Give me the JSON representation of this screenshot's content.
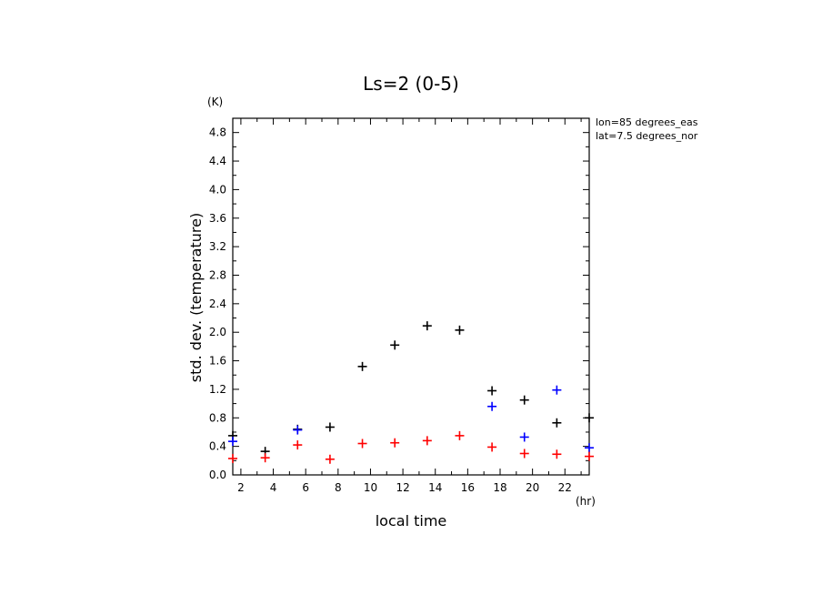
{
  "chart_data": {
    "type": "scatter",
    "title": "Ls=2 (0-5)",
    "xlabel": "local time",
    "ylabel": "std. dev. (temperature)",
    "x_unit": "(hr)",
    "y_unit": "(K)",
    "annotations": [
      "lon=85 degrees_eas",
      "lat=7.5 degrees_nor"
    ],
    "xlim": [
      1.5,
      23.5
    ],
    "ylim": [
      0,
      5.0
    ],
    "x_ticks": [
      2,
      4,
      6,
      8,
      10,
      12,
      14,
      16,
      18,
      20,
      22
    ],
    "y_ticks": [
      0.0,
      0.4,
      0.8,
      1.2,
      1.6,
      2.0,
      2.4,
      2.8,
      3.2,
      3.6,
      4.0,
      4.4,
      4.8
    ],
    "grid": false,
    "series": [
      {
        "color": "#000000",
        "x": [
          1.5,
          3.5,
          5.5,
          7.5,
          9.5,
          11.5,
          13.5,
          15.5,
          17.5,
          19.5,
          21.5,
          23.5
        ],
        "y": [
          0.55,
          0.33,
          0.64,
          0.67,
          1.52,
          1.82,
          2.09,
          2.03,
          1.18,
          1.05,
          0.73,
          0.8
        ]
      },
      {
        "color": "#0000ff",
        "x": [
          1.5,
          5.5,
          17.5,
          19.5,
          21.5,
          23.5
        ],
        "y": [
          0.47,
          0.63,
          0.96,
          0.53,
          1.19,
          0.38
        ]
      },
      {
        "color": "#ff0000",
        "x": [
          1.5,
          3.5,
          5.5,
          7.5,
          9.5,
          11.5,
          13.5,
          15.5,
          17.5,
          19.5,
          21.5,
          23.5
        ],
        "y": [
          0.23,
          0.24,
          0.42,
          0.22,
          0.44,
          0.45,
          0.48,
          0.55,
          0.39,
          0.3,
          0.29,
          0.26
        ]
      }
    ]
  }
}
